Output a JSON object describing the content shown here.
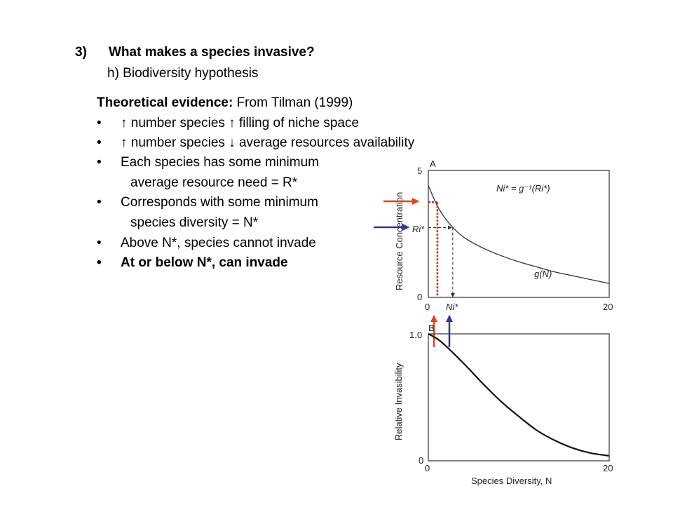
{
  "slide": {
    "heading_num": "3)",
    "heading_text": "What makes a species invasive?",
    "subheading": "h) Biodiversity hypothesis",
    "evidence_bold": "Theoretical evidence:",
    "evidence_rest": " From Tilman (1999)",
    "bullet_char": "•",
    "bullets": [
      "↑ number species ↑ filling of niche space",
      "↑ number species ↓ average resources availability",
      "Each species has some minimum",
      "Corresponds with some minimum",
      "Above N*, species cannot invade",
      "At or below N*, can invade"
    ],
    "cont": [
      "average resource need = R*",
      "species diversity = N*"
    ]
  },
  "chart_data": [
    {
      "type": "line",
      "panel_label": "A",
      "ylabel": "Resource Concentration",
      "xlim": [
        0,
        20
      ],
      "ylim": [
        0,
        5
      ],
      "x_ticks": [
        "0",
        "20"
      ],
      "y_ticks": [
        "0",
        "5"
      ],
      "equation": "Ni* = g⁻¹(Ri*)",
      "series": [
        {
          "name": "g(N)",
          "x": [
            0,
            1,
            2,
            3,
            4,
            6,
            8,
            10,
            12,
            14,
            16,
            18,
            20
          ],
          "values": [
            4.4,
            3.6,
            3.05,
            2.65,
            2.35,
            1.95,
            1.65,
            1.4,
            1.2,
            1.0,
            0.85,
            0.7,
            0.55
          ]
        }
      ],
      "markers": {
        "Ri_star": 2.75,
        "Ni_star": 2.7,
        "Ri_label": "Ri*",
        "Ni_label": "Ni*"
      },
      "red_marker": {
        "x": 1.0,
        "y": 3.75
      }
    },
    {
      "type": "line",
      "panel_label": "B",
      "xlabel": "Species Diversity, N",
      "ylabel": "Relative Invasibility",
      "xlim": [
        0,
        20
      ],
      "ylim": [
        0,
        1.0
      ],
      "x_ticks": [
        "0",
        "20"
      ],
      "y_ticks": [
        "0",
        "1.0"
      ],
      "series": [
        {
          "x": [
            0,
            1,
            2,
            4,
            6,
            8,
            10,
            12,
            14,
            16,
            18,
            20
          ],
          "values": [
            1.0,
            0.96,
            0.9,
            0.76,
            0.61,
            0.47,
            0.35,
            0.24,
            0.16,
            0.1,
            0.06,
            0.04
          ]
        }
      ]
    }
  ],
  "colors": {
    "red": "#e8401c",
    "red_dotted": "#d62e1a",
    "blue": "#333399"
  }
}
